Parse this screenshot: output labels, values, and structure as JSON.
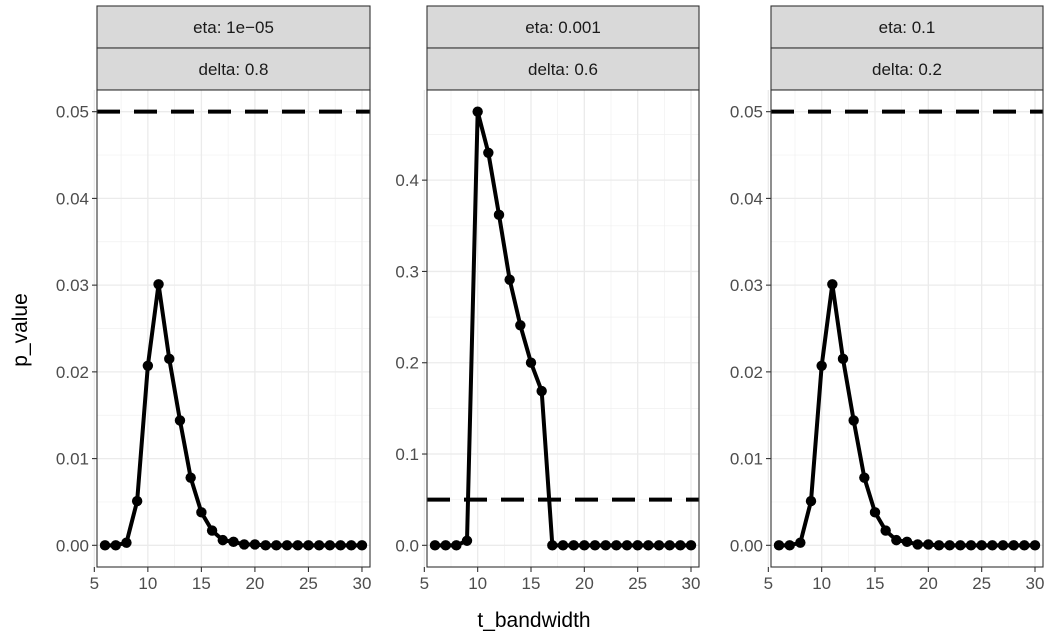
{
  "chart_data": {
    "type": "line",
    "xlabel": "t_bandwidth",
    "ylabel": "p_value",
    "grid": true,
    "reference_line_color": "#000000",
    "panels": [
      {
        "strip_top": "eta: 1e−05",
        "strip_bottom": "delta: 0.8",
        "xlim": [
          5.25,
          30.75
        ],
        "ylim": [
          -0.0025,
          0.0525
        ],
        "x_ticks": [
          5,
          10,
          15,
          20,
          25,
          30
        ],
        "x_tick_labels": [
          "5",
          "10",
          "15",
          "20",
          "25",
          "30"
        ],
        "y_ticks": [
          0,
          0.01,
          0.02,
          0.03,
          0.04,
          0.05
        ],
        "y_tick_labels": [
          "0.00",
          "0.01",
          "0.02",
          "0.03",
          "0.04",
          "0.05"
        ],
        "hline": 0.05,
        "x": [
          6,
          7,
          8,
          9,
          10,
          11,
          12,
          13,
          14,
          15,
          16,
          17,
          18,
          19,
          20,
          21,
          22,
          23,
          24,
          25,
          26,
          27,
          28,
          29,
          30
        ],
        "y": [
          0,
          0,
          0.0003,
          0.0051,
          0.0207,
          0.0301,
          0.0215,
          0.0144,
          0.0078,
          0.0038,
          0.0017,
          0.0006,
          0.0004,
          0.0001,
          0.0001,
          0,
          0,
          0,
          0,
          0,
          0,
          0,
          0,
          0,
          0
        ]
      },
      {
        "strip_top": "eta: 0.001",
        "strip_bottom": "delta: 0.6",
        "xlim": [
          5.25,
          30.75
        ],
        "ylim": [
          -0.02375,
          0.49875
        ],
        "x_ticks": [
          5,
          10,
          15,
          20,
          25,
          30
        ],
        "x_tick_labels": [
          "5",
          "10",
          "15",
          "20",
          "25",
          "30"
        ],
        "y_ticks": [
          0,
          0.1,
          0.2,
          0.3,
          0.4
        ],
        "y_tick_labels": [
          "0.0",
          "0.1",
          "0.2",
          "0.3",
          "0.4"
        ],
        "hline": 0.05,
        "x": [
          6,
          7,
          8,
          9,
          10,
          11,
          12,
          13,
          14,
          15,
          16,
          17,
          18,
          19,
          20,
          21,
          22,
          23,
          24,
          25,
          26,
          27,
          28,
          29,
          30
        ],
        "y": [
          0,
          0,
          0,
          0.005,
          0.475,
          0.43,
          0.362,
          0.291,
          0.241,
          0.2,
          0.169,
          0,
          0,
          0,
          0,
          0,
          0,
          0,
          0,
          0,
          0,
          0,
          0,
          0,
          0
        ]
      },
      {
        "strip_top": "eta: 0.1",
        "strip_bottom": "delta: 0.2",
        "xlim": [
          5.25,
          30.75
        ],
        "ylim": [
          -0.0025,
          0.0525
        ],
        "x_ticks": [
          5,
          10,
          15,
          20,
          25,
          30
        ],
        "x_tick_labels": [
          "5",
          "10",
          "15",
          "20",
          "25",
          "30"
        ],
        "y_ticks": [
          0,
          0.01,
          0.02,
          0.03,
          0.04,
          0.05
        ],
        "y_tick_labels": [
          "0.00",
          "0.01",
          "0.02",
          "0.03",
          "0.04",
          "0.05"
        ],
        "hline": 0.05,
        "x": [
          6,
          7,
          8,
          9,
          10,
          11,
          12,
          13,
          14,
          15,
          16,
          17,
          18,
          19,
          20,
          21,
          22,
          23,
          24,
          25,
          26,
          27,
          28,
          29,
          30
        ],
        "y": [
          0,
          0,
          0.0003,
          0.0051,
          0.0207,
          0.0301,
          0.0215,
          0.0144,
          0.0078,
          0.0038,
          0.0017,
          0.0006,
          0.0004,
          0.0001,
          0.0001,
          0,
          0,
          0,
          0,
          0,
          0,
          0,
          0,
          0,
          0
        ]
      }
    ]
  }
}
